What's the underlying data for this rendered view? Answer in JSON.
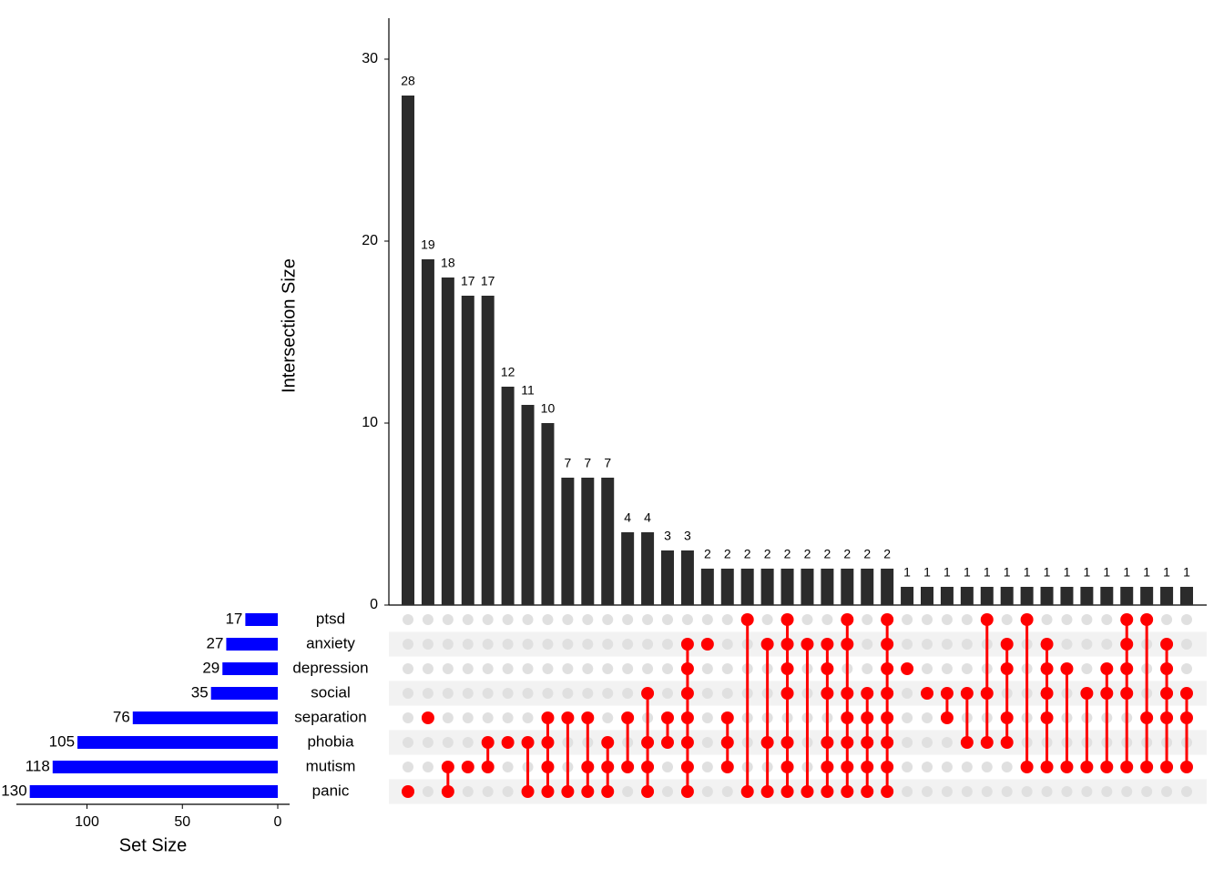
{
  "chart_data": {
    "type": "upset",
    "y_label": "Intersection Size",
    "x_label": "Set Size",
    "ylim": [
      0,
      32
    ],
    "yticks": [
      0,
      10,
      20,
      30
    ],
    "xlim": [
      137,
      0
    ],
    "xticks": [
      100,
      50,
      0
    ],
    "bar_color": "#2b2b2b",
    "set_color": "#0000ff",
    "dot_color": "#ff0000",
    "sets": [
      "ptsd",
      "anxiety",
      "depression",
      "social",
      "separation",
      "phobia",
      "mutism",
      "panic"
    ],
    "set_sizes": [
      17,
      27,
      29,
      35,
      76,
      105,
      118,
      130
    ],
    "values": [
      28,
      19,
      18,
      17,
      17,
      12,
      11,
      10,
      7,
      7,
      7,
      4,
      4,
      3,
      3,
      2,
      2,
      2,
      2,
      2,
      2,
      2,
      2,
      2,
      2,
      1,
      1,
      1,
      1,
      1,
      1,
      1,
      1,
      1,
      1,
      1,
      1,
      1,
      1,
      1
    ],
    "members": [
      [
        7
      ],
      [
        4
      ],
      [
        6,
        7
      ],
      [
        6
      ],
      [
        5,
        6
      ],
      [
        5
      ],
      [
        5,
        7
      ],
      [
        4,
        5,
        6,
        7
      ],
      [
        4,
        7
      ],
      [
        4,
        6,
        7
      ],
      [
        5,
        6,
        7
      ],
      [
        4,
        6
      ],
      [
        3,
        5,
        6,
        7
      ],
      [
        4,
        5
      ],
      [
        1,
        2,
        3,
        4,
        5,
        6,
        7
      ],
      [
        1
      ],
      [
        4,
        5,
        6
      ],
      [
        0,
        7
      ],
      [
        1,
        5,
        7
      ],
      [
        0,
        1,
        2,
        3,
        5,
        6,
        7
      ],
      [
        1,
        7
      ],
      [
        1,
        2,
        3,
        5,
        6,
        7
      ],
      [
        0,
        1,
        3,
        4,
        5,
        6,
        7
      ],
      [
        3,
        4,
        5,
        6,
        7
      ],
      [
        0,
        1,
        2,
        3,
        4,
        5,
        6,
        7
      ],
      [
        2
      ],
      [
        3
      ],
      [
        3,
        4
      ],
      [
        3,
        5
      ],
      [
        0,
        3,
        5
      ],
      [
        1,
        2,
        4,
        5
      ],
      [
        0,
        6
      ],
      [
        1,
        2,
        3,
        4,
        6
      ],
      [
        2,
        6
      ],
      [
        3,
        6
      ],
      [
        2,
        3,
        6
      ],
      [
        0,
        1,
        2,
        3,
        6
      ],
      [
        0,
        4,
        6
      ],
      [
        1,
        2,
        3,
        4,
        6
      ],
      [
        3,
        4,
        6
      ]
    ]
  }
}
